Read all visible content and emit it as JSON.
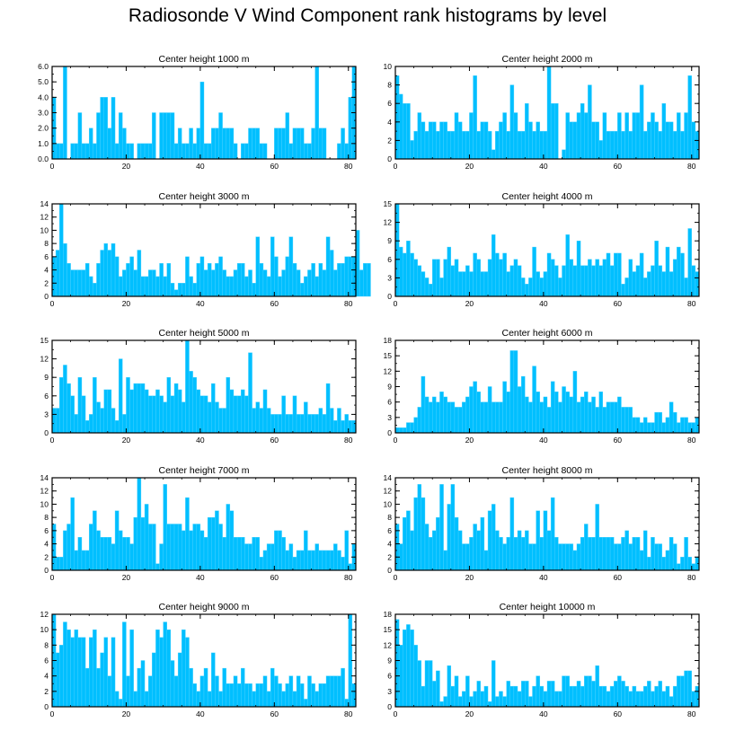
{
  "title": "Radiosonde V Wind Component rank histograms by level",
  "colors": {
    "bar": "#00BFFF",
    "bar_edge": "#4FD2FF",
    "axis": "#000000"
  },
  "chart_data": [
    {
      "type": "bar",
      "title": "Center height 1000 m",
      "xlim": [
        0,
        82
      ],
      "ylim": [
        0,
        6
      ],
      "x_ticks": [
        0,
        20,
        40,
        60,
        80
      ],
      "y_ticks": [
        0,
        1,
        2,
        3,
        4,
        5,
        6
      ],
      "y_tick_labels": [
        "0.0",
        "1.0",
        "2.0",
        "3.0",
        "4.0",
        "5.0",
        "6.0"
      ],
      "values": [
        4,
        1,
        1,
        6,
        0,
        1,
        1,
        3,
        1,
        1,
        2,
        1,
        3,
        4,
        4,
        2,
        4,
        1,
        3,
        2,
        1,
        1,
        0,
        1,
        1,
        1,
        1,
        3,
        0,
        3,
        3,
        3,
        3,
        1,
        2,
        1,
        1,
        2,
        1,
        2,
        5,
        1,
        1,
        2,
        2,
        3,
        2,
        2,
        2,
        1,
        0,
        1,
        1,
        2,
        2,
        2,
        1,
        1,
        0,
        0,
        2,
        2,
        2,
        3,
        1,
        2,
        2,
        2,
        1,
        1,
        2,
        6,
        2,
        2,
        0,
        0,
        0,
        1,
        2,
        1,
        4,
        6
      ]
    },
    {
      "type": "bar",
      "title": "Center height 2000 m",
      "xlim": [
        0,
        82
      ],
      "ylim": [
        0,
        10
      ],
      "x_ticks": [
        0,
        20,
        40,
        60,
        80
      ],
      "y_ticks": [
        0,
        2,
        4,
        6,
        8,
        10
      ],
      "y_tick_labels": [
        "0",
        "2",
        "4",
        "6",
        "8",
        "10"
      ],
      "values": [
        9,
        7,
        6,
        6,
        2,
        3,
        5,
        4,
        3,
        4,
        4,
        3,
        4,
        4,
        3,
        3,
        5,
        4,
        3,
        3,
        5,
        9,
        3,
        4,
        4,
        3,
        1,
        3,
        4,
        5,
        3,
        8,
        5,
        3,
        3,
        6,
        4,
        3,
        4,
        3,
        3,
        10,
        6,
        6,
        0,
        1,
        5,
        4,
        4,
        5,
        6,
        5,
        8,
        4,
        4,
        2,
        5,
        3,
        3,
        3,
        5,
        3,
        5,
        3,
        5,
        5,
        8,
        3,
        4,
        5,
        4,
        3,
        6,
        4,
        4,
        3,
        5,
        3,
        5,
        9,
        4,
        3
      ]
    },
    {
      "type": "bar",
      "title": "Center height 3000 m",
      "xlim": [
        0,
        82
      ],
      "ylim": [
        0,
        14
      ],
      "x_ticks": [
        0,
        20,
        40,
        60,
        80
      ],
      "y_ticks": [
        0,
        2,
        4,
        6,
        8,
        10,
        12,
        14
      ],
      "y_tick_labels": [
        "0",
        "2",
        "4",
        "6",
        "8",
        "10",
        "12",
        "14"
      ],
      "values": [
        6,
        7,
        14,
        8,
        5,
        4,
        4,
        4,
        4,
        5,
        3,
        2,
        5,
        7,
        8,
        7,
        8,
        6,
        3,
        4,
        5,
        6,
        4,
        7,
        3,
        3,
        4,
        4,
        3,
        5,
        3,
        5,
        2,
        1,
        2,
        2,
        6,
        3,
        2,
        5,
        6,
        4,
        5,
        4,
        5,
        6,
        4,
        3,
        3,
        4,
        5,
        5,
        3,
        4,
        2,
        9,
        5,
        4,
        3,
        9,
        6,
        3,
        4,
        6,
        9,
        5,
        4,
        2,
        3,
        4,
        5,
        3,
        5,
        4,
        9,
        7,
        4,
        5,
        5,
        6,
        6,
        6,
        10,
        4,
        5,
        5
      ]
    },
    {
      "type": "bar",
      "title": "Center height 4000 m",
      "xlim": [
        0,
        82
      ],
      "ylim": [
        0,
        15
      ],
      "x_ticks": [
        0,
        20,
        40,
        60,
        80
      ],
      "y_ticks": [
        0,
        3,
        6,
        9,
        12,
        15
      ],
      "y_tick_labels": [
        "0",
        "3",
        "6",
        "9",
        "12",
        "15"
      ],
      "values": [
        15,
        8,
        7,
        9,
        7,
        6,
        5,
        4,
        3,
        2,
        6,
        6,
        3,
        6,
        8,
        5,
        6,
        4,
        4,
        5,
        4,
        7,
        6,
        4,
        4,
        6,
        10,
        7,
        6,
        7,
        4,
        5,
        6,
        5,
        3,
        2,
        3,
        8,
        4,
        3,
        4,
        7,
        6,
        5,
        3,
        5,
        10,
        6,
        5,
        9,
        5,
        5,
        6,
        5,
        6,
        5,
        6,
        7,
        5,
        7,
        7,
        2,
        3,
        6,
        4,
        5,
        7,
        3,
        4,
        5,
        9,
        5,
        4,
        8,
        4,
        6,
        8,
        7,
        3,
        11,
        5,
        4
      ]
    },
    {
      "type": "bar",
      "title": "Center height 5000 m",
      "xlim": [
        0,
        82
      ],
      "ylim": [
        0,
        15
      ],
      "x_ticks": [
        0,
        20,
        40,
        60,
        80
      ],
      "y_ticks": [
        0,
        3,
        6,
        9,
        12,
        15
      ],
      "y_tick_labels": [
        "0",
        "3",
        "6",
        "9",
        "12",
        "15"
      ],
      "values": [
        4,
        4,
        9,
        11,
        8,
        6,
        3,
        9,
        6,
        2,
        3,
        9,
        5,
        4,
        7,
        7,
        4,
        2,
        12,
        3,
        9,
        7,
        8,
        8,
        8,
        7,
        6,
        6,
        7,
        6,
        5,
        9,
        6,
        8,
        7,
        5,
        15,
        10,
        9,
        7,
        6,
        6,
        5,
        8,
        5,
        4,
        4,
        9,
        7,
        6,
        6,
        7,
        6,
        13,
        4,
        5,
        4,
        7,
        4,
        3,
        3,
        3,
        6,
        3,
        3,
        6,
        3,
        3,
        5,
        3,
        3,
        3,
        4,
        3,
        8,
        4,
        2,
        4,
        2,
        3,
        2,
        2
      ]
    },
    {
      "type": "bar",
      "title": "Center height 6000 m",
      "xlim": [
        0,
        82
      ],
      "ylim": [
        0,
        18
      ],
      "x_ticks": [
        0,
        20,
        40,
        60,
        80
      ],
      "y_ticks": [
        0,
        3,
        6,
        9,
        12,
        15,
        18
      ],
      "y_tick_labels": [
        "0",
        "3",
        "6",
        "9",
        "12",
        "15",
        "18"
      ],
      "values": [
        1,
        1,
        1,
        2,
        2,
        3,
        5,
        11,
        7,
        6,
        7,
        6,
        8,
        7,
        6,
        6,
        5,
        5,
        6,
        7,
        9,
        10,
        8,
        6,
        6,
        9,
        6,
        6,
        6,
        10,
        8,
        16,
        16,
        9,
        11,
        7,
        6,
        13,
        8,
        6,
        7,
        5,
        10,
        8,
        6,
        9,
        8,
        7,
        12,
        6,
        7,
        8,
        6,
        7,
        5,
        8,
        5,
        6,
        6,
        6,
        7,
        5,
        5,
        5,
        3,
        3,
        2,
        3,
        2,
        2,
        4,
        4,
        2,
        3,
        6,
        4,
        2,
        3,
        3,
        2,
        2,
        3
      ]
    },
    {
      "type": "bar",
      "title": "Center height 7000 m",
      "xlim": [
        0,
        82
      ],
      "ylim": [
        0,
        14
      ],
      "x_ticks": [
        0,
        20,
        40,
        60,
        80
      ],
      "y_ticks": [
        0,
        2,
        4,
        6,
        8,
        10,
        12,
        14
      ],
      "y_tick_labels": [
        "0",
        "2",
        "4",
        "6",
        "8",
        "10",
        "12",
        "14"
      ],
      "values": [
        7,
        2,
        2,
        6,
        7,
        11,
        3,
        5,
        3,
        3,
        7,
        9,
        6,
        5,
        5,
        5,
        4,
        9,
        6,
        5,
        5,
        4,
        8,
        14,
        8,
        10,
        7,
        7,
        1,
        4,
        13,
        7,
        7,
        7,
        7,
        6,
        11,
        6,
        7,
        7,
        6,
        5,
        8,
        8,
        9,
        7,
        5,
        10,
        9,
        5,
        5,
        5,
        4,
        4,
        5,
        5,
        2,
        3,
        4,
        4,
        6,
        6,
        5,
        3,
        4,
        2,
        3,
        3,
        6,
        3,
        3,
        4,
        3,
        3,
        3,
        3,
        4,
        3,
        2,
        6,
        1,
        4
      ]
    },
    {
      "type": "bar",
      "title": "Center height 8000 m",
      "xlim": [
        0,
        82
      ],
      "ylim": [
        0,
        14
      ],
      "x_ticks": [
        0,
        20,
        40,
        60,
        80
      ],
      "y_ticks": [
        0,
        2,
        4,
        6,
        8,
        10,
        12,
        14
      ],
      "y_tick_labels": [
        "0",
        "2",
        "4",
        "6",
        "8",
        "10",
        "12",
        "14"
      ],
      "values": [
        7,
        4,
        8,
        9,
        6,
        11,
        13,
        11,
        7,
        5,
        6,
        8,
        13,
        3,
        10,
        13,
        8,
        6,
        4,
        4,
        5,
        7,
        6,
        8,
        3,
        9,
        10,
        6,
        5,
        4,
        5,
        11,
        5,
        6,
        5,
        6,
        4,
        4,
        9,
        5,
        9,
        6,
        11,
        5,
        4,
        4,
        4,
        4,
        3,
        4,
        5,
        7,
        5,
        5,
        10,
        5,
        5,
        5,
        5,
        4,
        4,
        5,
        6,
        4,
        5,
        5,
        3,
        6,
        2,
        5,
        4,
        4,
        2,
        3,
        5,
        4,
        1,
        2,
        5,
        2,
        1,
        2
      ]
    },
    {
      "type": "bar",
      "title": "Center height 9000 m",
      "xlim": [
        0,
        82
      ],
      "ylim": [
        0,
        12
      ],
      "x_ticks": [
        0,
        20,
        40,
        60,
        80
      ],
      "y_ticks": [
        0,
        2,
        4,
        6,
        8,
        10,
        12
      ],
      "y_tick_labels": [
        "0",
        "2",
        "4",
        "6",
        "8",
        "10",
        "12"
      ],
      "values": [
        12,
        7,
        8,
        11,
        10,
        9,
        10,
        9,
        9,
        5,
        9,
        10,
        5,
        7,
        9,
        4,
        9,
        2,
        1,
        11,
        4,
        10,
        2,
        5,
        6,
        2,
        4,
        7,
        10,
        9,
        11,
        10,
        6,
        4,
        7,
        10,
        9,
        5,
        3,
        2,
        4,
        5,
        2,
        7,
        4,
        2,
        5,
        3,
        3,
        4,
        3,
        5,
        3,
        3,
        2,
        3,
        3,
        4,
        2,
        5,
        4,
        3,
        2,
        3,
        4,
        2,
        4,
        3,
        1,
        4,
        3,
        2,
        3,
        3,
        4,
        4,
        4,
        4,
        5,
        1,
        12,
        3
      ]
    },
    {
      "type": "bar",
      "title": "Center height 10000 m",
      "xlim": [
        0,
        82
      ],
      "ylim": [
        0,
        18
      ],
      "x_ticks": [
        0,
        20,
        40,
        60,
        80
      ],
      "y_ticks": [
        0,
        3,
        6,
        9,
        12,
        15,
        18
      ],
      "y_tick_labels": [
        "0",
        "3",
        "6",
        "9",
        "12",
        "15",
        "18"
      ],
      "values": [
        17,
        12,
        15,
        16,
        15,
        12,
        9,
        4,
        9,
        9,
        5,
        7,
        1,
        2,
        8,
        4,
        6,
        2,
        3,
        6,
        2,
        3,
        5,
        3,
        4,
        1,
        9,
        2,
        3,
        2,
        5,
        4,
        4,
        3,
        5,
        5,
        2,
        4,
        6,
        4,
        3,
        5,
        5,
        3,
        3,
        6,
        6,
        4,
        4,
        5,
        4,
        6,
        6,
        5,
        8,
        4,
        4,
        3,
        4,
        5,
        6,
        5,
        4,
        3,
        4,
        3,
        3,
        4,
        5,
        3,
        4,
        5,
        3,
        4,
        2,
        4,
        6,
        6,
        7,
        7,
        3,
        4
      ]
    }
  ]
}
